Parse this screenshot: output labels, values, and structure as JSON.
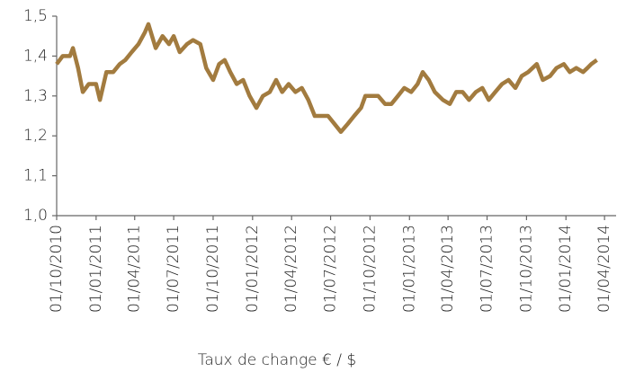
{
  "chart_data": {
    "type": "line",
    "xlabel": "Taux de change € / $",
    "x": [
      "2010-10-01",
      "2010-10-15",
      "2010-11-01",
      "2010-11-08",
      "2010-11-20",
      "2010-12-01",
      "2010-12-15",
      "2011-01-01",
      "2011-01-10",
      "2011-01-25",
      "2011-02-10",
      "2011-02-25",
      "2011-03-10",
      "2011-03-25",
      "2011-04-10",
      "2011-04-25",
      "2011-05-03",
      "2011-05-20",
      "2011-06-05",
      "2011-06-20",
      "2011-07-01",
      "2011-07-15",
      "2011-08-01",
      "2011-08-15",
      "2011-09-01",
      "2011-09-15",
      "2011-10-01",
      "2011-10-15",
      "2011-10-28",
      "2011-11-10",
      "2011-11-25",
      "2011-12-10",
      "2011-12-25",
      "2012-01-10",
      "2012-01-25",
      "2012-02-10",
      "2012-02-25",
      "2012-03-10",
      "2012-03-25",
      "2012-04-10",
      "2012-04-25",
      "2012-05-10",
      "2012-05-25",
      "2012-06-10",
      "2012-06-25",
      "2012-07-10",
      "2012-07-25",
      "2012-08-10",
      "2012-08-25",
      "2012-09-10",
      "2012-09-20",
      "2012-10-05",
      "2012-10-20",
      "2012-11-05",
      "2012-11-20",
      "2012-12-05",
      "2012-12-20",
      "2013-01-05",
      "2013-01-20",
      "2013-02-01",
      "2013-02-15",
      "2013-03-01",
      "2013-03-20",
      "2013-04-05",
      "2013-04-20",
      "2013-05-05",
      "2013-05-20",
      "2013-06-05",
      "2013-06-20",
      "2013-07-05",
      "2013-07-20",
      "2013-08-05",
      "2013-08-20",
      "2013-09-05",
      "2013-09-20",
      "2013-10-05",
      "2013-10-25",
      "2013-11-08",
      "2013-11-25",
      "2013-12-10",
      "2013-12-27",
      "2014-01-10",
      "2014-01-25",
      "2014-02-10",
      "2014-02-20",
      "2014-03-01",
      "2014-03-14"
    ],
    "series": [
      {
        "name": "Taux de change € / $",
        "color": "#a27b3f",
        "values": [
          1.38,
          1.4,
          1.4,
          1.42,
          1.37,
          1.31,
          1.33,
          1.33,
          1.29,
          1.36,
          1.36,
          1.38,
          1.39,
          1.41,
          1.43,
          1.46,
          1.48,
          1.42,
          1.45,
          1.43,
          1.45,
          1.41,
          1.43,
          1.44,
          1.43,
          1.37,
          1.34,
          1.38,
          1.39,
          1.36,
          1.33,
          1.34,
          1.3,
          1.27,
          1.3,
          1.31,
          1.34,
          1.31,
          1.33,
          1.31,
          1.32,
          1.29,
          1.25,
          1.25,
          1.25,
          1.23,
          1.21,
          1.23,
          1.25,
          1.27,
          1.3,
          1.3,
          1.3,
          1.28,
          1.28,
          1.3,
          1.32,
          1.31,
          1.33,
          1.36,
          1.34,
          1.31,
          1.29,
          1.28,
          1.31,
          1.31,
          1.29,
          1.31,
          1.32,
          1.29,
          1.31,
          1.33,
          1.34,
          1.32,
          1.35,
          1.36,
          1.38,
          1.34,
          1.35,
          1.37,
          1.38,
          1.36,
          1.37,
          1.36,
          1.37,
          1.38,
          1.39
        ]
      }
    ],
    "xlim": [
      "2010-10-01",
      "2014-04-28"
    ],
    "xticks": [
      {
        "value": "2010-10-01",
        "label": "01/10/2010"
      },
      {
        "value": "2011-01-01",
        "label": "01/01/2011"
      },
      {
        "value": "2011-04-01",
        "label": "01/04/2011"
      },
      {
        "value": "2011-07-01",
        "label": "01/07/2011"
      },
      {
        "value": "2011-10-01",
        "label": "01/10/2011"
      },
      {
        "value": "2012-01-01",
        "label": "01/01/2012"
      },
      {
        "value": "2012-04-01",
        "label": "01/04/2012"
      },
      {
        "value": "2012-07-01",
        "label": "01/07/2012"
      },
      {
        "value": "2012-10-01",
        "label": "01/10/2012"
      },
      {
        "value": "2013-01-01",
        "label": "01/01/2013"
      },
      {
        "value": "2013-04-01",
        "label": "01/04/2013"
      },
      {
        "value": "2013-07-01",
        "label": "01/07/2013"
      },
      {
        "value": "2013-10-01",
        "label": "01/10/2013"
      },
      {
        "value": "2014-01-01",
        "label": "01/01/2014"
      },
      {
        "value": "2014-04-01",
        "label": "01/04/2014"
      }
    ],
    "ylim": [
      1.0,
      1.5
    ],
    "yticks": [
      {
        "value": 1.0,
        "label": "1,0"
      },
      {
        "value": 1.1,
        "label": "1,1"
      },
      {
        "value": 1.2,
        "label": "1,2"
      },
      {
        "value": 1.3,
        "label": "1,3"
      },
      {
        "value": 1.4,
        "label": "1,4"
      },
      {
        "value": 1.5,
        "label": "1,5"
      }
    ],
    "grid": false
  }
}
